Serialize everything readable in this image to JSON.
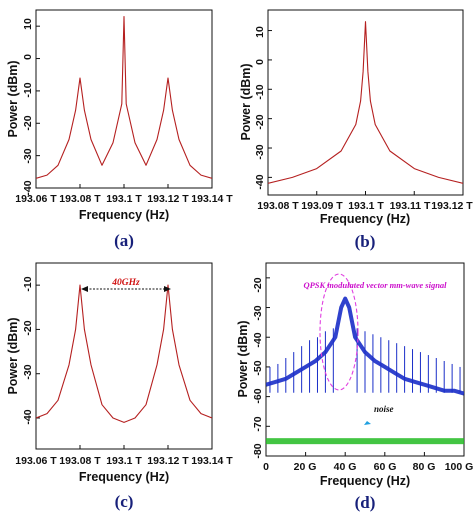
{
  "chart_data": [
    {
      "panel_label": "(a)",
      "type": "line",
      "xlabel": "Frequency (Hz)",
      "ylabel": "Power (dBm)",
      "xlim": [
        193.06,
        193.14
      ],
      "ylim": [
        -40,
        15
      ],
      "xticks": [
        193.06,
        193.08,
        193.1,
        193.12,
        193.14
      ],
      "xtick_labels": [
        "193.06 T",
        "193.08 T",
        "193.1 T",
        "193.12 T",
        "193.14 T"
      ],
      "yticks": [
        10,
        0,
        -10,
        -20,
        -30,
        -40
      ],
      "ytick_labels": [
        "10",
        "0",
        "-10",
        "-20",
        "-30",
        "-40"
      ],
      "color": "#b52020",
      "series": [
        {
          "x": [
            193.06,
            193.065,
            193.07,
            193.075,
            193.078,
            193.08,
            193.082,
            193.085,
            193.09,
            193.095,
            193.099,
            193.1,
            193.101,
            193.105,
            193.11,
            193.115,
            193.118,
            193.12,
            193.122,
            193.125,
            193.13,
            193.135,
            193.14
          ],
          "y": [
            -37,
            -36,
            -33,
            -25,
            -16,
            -6,
            -16,
            -25,
            -33,
            -26,
            -14,
            13,
            -14,
            -26,
            -33,
            -25,
            -16,
            -6,
            -16,
            -25,
            -33,
            -36,
            -37
          ]
        }
      ]
    },
    {
      "panel_label": "(b)",
      "type": "line",
      "xlabel": "Frequency (Hz)",
      "ylabel": "Power (dBm)",
      "xlim": [
        193.08,
        193.12
      ],
      "ylim": [
        -46,
        17
      ],
      "xticks": [
        193.08,
        193.09,
        193.1,
        193.11,
        193.12
      ],
      "xtick_labels": [
        "193.08 T",
        "193.09 T",
        "193.1 T",
        "193.11 T",
        "193.12 T"
      ],
      "yticks": [
        10,
        0,
        -10,
        -20,
        -30,
        -40
      ],
      "ytick_labels": [
        "10",
        "0",
        "-10",
        "-20",
        "-30",
        "-40"
      ],
      "color": "#b52020",
      "series": [
        {
          "x": [
            193.08,
            193.085,
            193.09,
            193.095,
            193.098,
            193.099,
            193.0995,
            193.1,
            193.1005,
            193.101,
            193.102,
            193.105,
            193.11,
            193.115,
            193.12
          ],
          "y": [
            -42,
            -40,
            -37,
            -31,
            -22,
            -14,
            -4,
            13,
            -4,
            -14,
            -22,
            -31,
            -37,
            -40,
            -42
          ]
        }
      ]
    },
    {
      "panel_label": "(c)",
      "type": "line",
      "xlabel": "Frequency (Hz)",
      "ylabel": "Power (dBm)",
      "xlim": [
        193.06,
        193.14
      ],
      "ylim": [
        -47,
        -5
      ],
      "xticks": [
        193.06,
        193.08,
        193.1,
        193.12,
        193.14
      ],
      "xtick_labels": [
        "193.06 T",
        "193.08 T",
        "193.1 T",
        "193.12 T",
        "193.14 T"
      ],
      "yticks": [
        -10,
        -20,
        -30,
        -40
      ],
      "ytick_labels": [
        "-10",
        "-20",
        "-30",
        "-40"
      ],
      "annotation": "40GHz",
      "color": "#b52020",
      "series": [
        {
          "x": [
            193.06,
            193.065,
            193.07,
            193.075,
            193.078,
            193.08,
            193.082,
            193.085,
            193.09,
            193.095,
            193.1,
            193.105,
            193.11,
            193.115,
            193.118,
            193.12,
            193.122,
            193.125,
            193.13,
            193.135,
            193.14
          ],
          "y": [
            -40,
            -39,
            -36,
            -28,
            -20,
            -10,
            -20,
            -28,
            -37,
            -40,
            -41,
            -40,
            -37,
            -28,
            -20,
            -10,
            -20,
            -28,
            -36,
            -39,
            -40
          ]
        }
      ]
    },
    {
      "panel_label": "(d)",
      "type": "line",
      "xlabel": "Frequency (Hz)",
      "ylabel": "Power (dBm)",
      "xlim": [
        0,
        100
      ],
      "ylim": [
        -80,
        -15
      ],
      "xticks": [
        0,
        20,
        40,
        60,
        80,
        100
      ],
      "xtick_labels": [
        "0",
        "20 G",
        "40 G",
        "60 G",
        "80 G",
        "100 G"
      ],
      "yticks": [
        -20,
        -30,
        -40,
        -50,
        -60,
        -70,
        -80
      ],
      "ytick_labels": [
        "-20",
        "-30",
        "-40",
        "-50",
        "-60",
        "-70",
        "-80"
      ],
      "annotations": [
        "QPSK modulated vector mm-wave signal",
        "noise"
      ],
      "colors": {
        "signal": "#1a2ec8",
        "noise": "#22bb22",
        "ellipse": "#e040e0"
      },
      "series": [
        {
          "x": [
            0,
            5,
            10,
            15,
            20,
            25,
            30,
            35,
            38,
            40,
            42,
            45,
            50,
            55,
            60,
            65,
            70,
            75,
            80,
            85,
            90,
            95,
            100
          ],
          "y": [
            -56,
            -55,
            -54,
            -52,
            -50,
            -48,
            -45,
            -40,
            -30,
            -27,
            -30,
            -40,
            -45,
            -48,
            -50,
            -52,
            -54,
            -55,
            -56,
            -57,
            -58,
            -58,
            -59
          ]
        },
        {
          "x": [
            0,
            100
          ],
          "y": [
            -75,
            -75
          ]
        }
      ],
      "spur_x": [
        2,
        6,
        10,
        14,
        18,
        22,
        26,
        30,
        34,
        46,
        50,
        54,
        58,
        62,
        66,
        70,
        74,
        78,
        82,
        86,
        90,
        94,
        98
      ],
      "spur_y": [
        -50,
        -49,
        -47,
        -45,
        -43,
        -41,
        -40,
        -38,
        -37,
        -37,
        -38,
        -39,
        -40,
        -41,
        -42,
        -43,
        -44,
        -45,
        -46,
        -47,
        -48,
        -49,
        -50
      ]
    }
  ]
}
